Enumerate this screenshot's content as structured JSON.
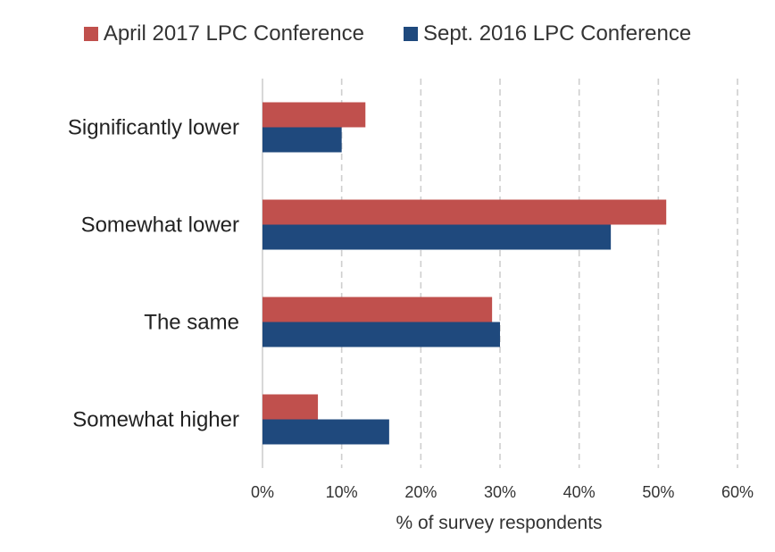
{
  "chart_data": {
    "type": "bar",
    "orientation": "horizontal",
    "categories": [
      "Significantly lower",
      "Somewhat lower",
      "The same",
      "Somewhat higher"
    ],
    "series": [
      {
        "name": "April 2017 LPC Conference",
        "color": "#c0504d",
        "values": [
          13,
          51,
          29,
          7
        ]
      },
      {
        "name": "Sept. 2016  LPC Conference",
        "color": "#1f497d",
        "values": [
          10,
          44,
          30,
          16
        ]
      }
    ],
    "xlabel": "% of survey respondents",
    "ylabel": "",
    "xlim": [
      0,
      60
    ],
    "xticks": [
      "0%",
      "10%",
      "20%",
      "30%",
      "40%",
      "50%",
      "60%"
    ],
    "grid": "vertical dashed",
    "legend_position": "top-center"
  }
}
